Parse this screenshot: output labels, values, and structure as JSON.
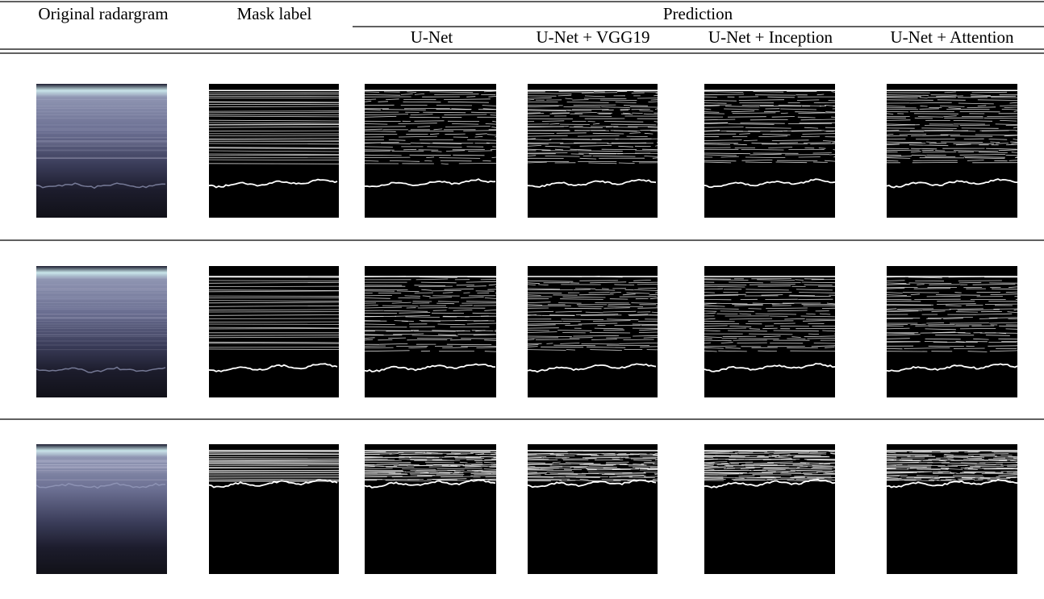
{
  "header": {
    "original": "Original radargram",
    "mask": "Mask label",
    "prediction": "Prediction",
    "models": [
      "U-Net",
      "U-Net + VGG19",
      "U-Net + Inception",
      "U-Net + Attention"
    ]
  }
}
